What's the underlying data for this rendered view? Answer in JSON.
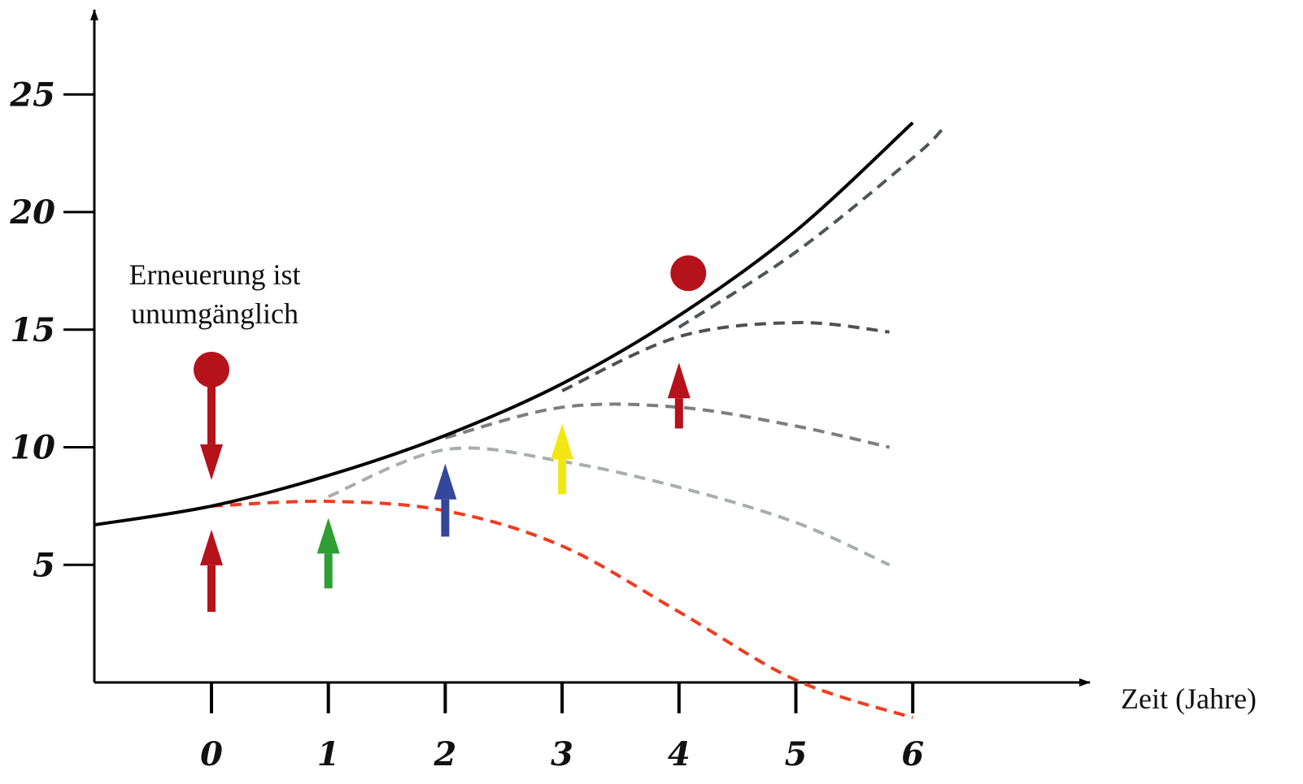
{
  "chart_data": {
    "type": "line",
    "title": "",
    "xlabel": "Zeit (Jahre)",
    "ylabel": "",
    "xlim": [
      -1,
      8.5
    ],
    "ylim": [
      0,
      27
    ],
    "x_ticks": [
      0,
      1,
      2,
      3,
      4,
      5,
      6
    ],
    "y_ticks": [
      5,
      10,
      15,
      20,
      25
    ],
    "grid": false,
    "legend": "none",
    "annotation": [
      "Erneuerung ist",
      "unumgänglich"
    ],
    "colors": {
      "main": "#000000",
      "decline": "#f03c1e",
      "branch_light": "#a9adb1",
      "branch_mid": "#7d7e80",
      "branch_dark": "#4f5153",
      "branch_darkest": "#505558",
      "arrow_red": "#b5121b",
      "arrow_green": "#2e9e35",
      "arrow_blue": "#35479a",
      "arrow_yellow": "#f2e714",
      "marker": "#b5121b"
    },
    "series": [
      {
        "key": "main",
        "style": "solid",
        "x": [
          -1,
          0,
          1,
          2,
          3,
          4,
          5,
          6
        ],
        "y": [
          6.7,
          7.5,
          8.8,
          10.5,
          12.7,
          15.6,
          19.2,
          23.8
        ]
      },
      {
        "key": "decline",
        "style": "dashed",
        "x": [
          0,
          1,
          2,
          3,
          4,
          5,
          6
        ],
        "y": [
          7.5,
          7.7,
          7.3,
          5.8,
          3.0,
          0.1,
          -1.5
        ]
      },
      {
        "key": "branch_light",
        "style": "dashed",
        "x": [
          1,
          2,
          3,
          4,
          5,
          5.8
        ],
        "y": [
          7.9,
          9.9,
          9.4,
          8.3,
          6.8,
          5.0
        ]
      },
      {
        "key": "branch_mid",
        "style": "dashed",
        "x": [
          2,
          3,
          4,
          5,
          5.8
        ],
        "y": [
          10.4,
          11.7,
          11.7,
          10.9,
          10.0
        ]
      },
      {
        "key": "branch_dark",
        "style": "dashed",
        "x": [
          3,
          4,
          5,
          5.8
        ],
        "y": [
          12.4,
          14.7,
          15.3,
          14.9
        ]
      },
      {
        "key": "branch_darkest",
        "style": "dashed",
        "x": [
          4,
          5,
          6,
          6.25
        ],
        "y": [
          15.1,
          18.3,
          22.3,
          23.5
        ]
      }
    ],
    "arrows": [
      {
        "x": 0,
        "from": 12.6,
        "to": 8.6,
        "color_key": "arrow_red"
      },
      {
        "x": 0,
        "from": 3.0,
        "to": 6.5,
        "color_key": "arrow_red"
      },
      {
        "x": 1,
        "from": 4.0,
        "to": 7.0,
        "color_key": "arrow_green"
      },
      {
        "x": 2,
        "from": 6.2,
        "to": 9.3,
        "color_key": "arrow_blue"
      },
      {
        "x": 3,
        "from": 8.0,
        "to": 11.0,
        "color_key": "arrow_yellow"
      },
      {
        "x": 4,
        "from": 10.8,
        "to": 13.6,
        "color_key": "arrow_red"
      }
    ],
    "markers": [
      {
        "x": 0,
        "y": 13.3,
        "color_key": "marker"
      },
      {
        "x": 4.08,
        "y": 17.4,
        "color_key": "marker"
      }
    ]
  }
}
